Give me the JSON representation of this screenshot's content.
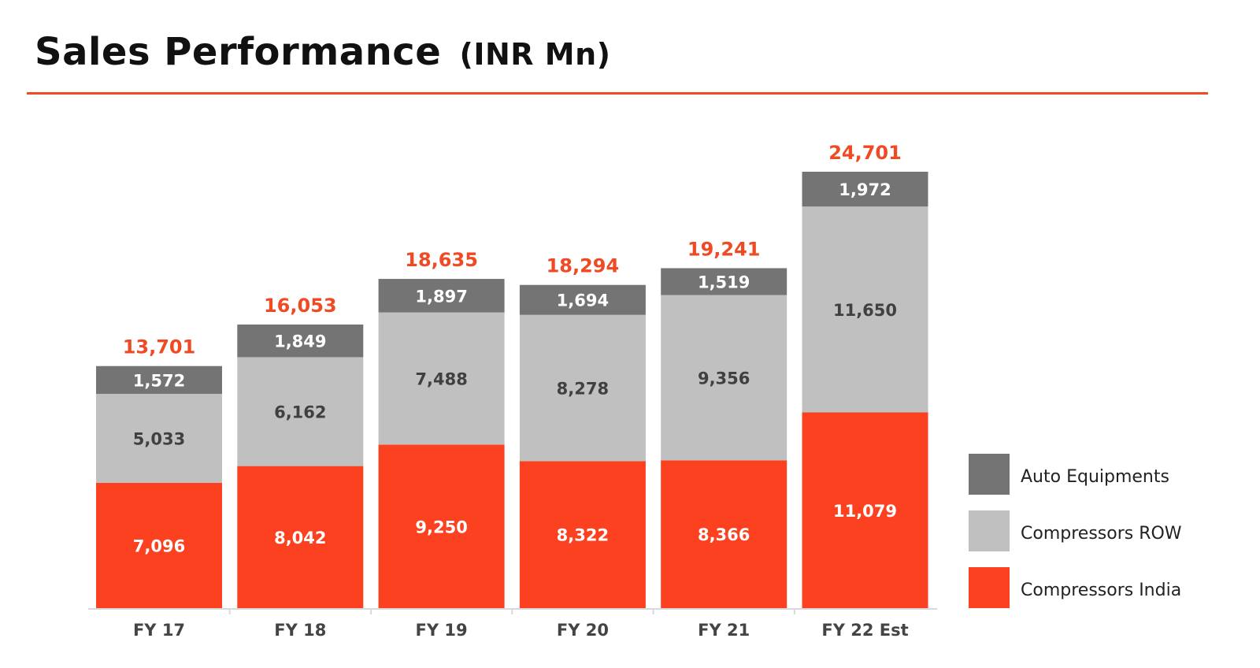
{
  "title": {
    "main": "Sales Performance",
    "sub": "(INR Mn)"
  },
  "colors": {
    "accent": "#f04a24",
    "india": "#fc4120",
    "row": "#c0c0c0",
    "auto": "#747474",
    "total_label": "#f04a24"
  },
  "chart_data": {
    "type": "bar",
    "stacked": true,
    "categories": [
      "FY 17",
      "FY 18",
      "FY 19",
      "FY 20",
      "FY 21",
      "FY 22 Est"
    ],
    "series": [
      {
        "name": "Compressors India",
        "values": [
          7096,
          8042,
          9250,
          8322,
          8366,
          11079
        ],
        "labels": [
          "7,096",
          "8,042",
          "9,250",
          "8,322",
          "8,366",
          "11,079"
        ]
      },
      {
        "name": "Compressors ROW",
        "values": [
          5033,
          6162,
          7488,
          8278,
          9356,
          11650
        ],
        "labels": [
          "5,033",
          "6,162",
          "7,488",
          "8,278",
          "9,356",
          "11,650"
        ]
      },
      {
        "name": "Auto Equipments",
        "values": [
          1572,
          1849,
          1897,
          1694,
          1519,
          1972
        ],
        "labels": [
          "1,572",
          "1,849",
          "1,897",
          "1,694",
          "1,519",
          "1,972"
        ]
      }
    ],
    "totals": [
      13701,
      16053,
      18635,
      18294,
      19241,
      24701
    ],
    "total_labels": [
      "13,701",
      "16,053",
      "18,635",
      "18,294",
      "19,241",
      "24,701"
    ],
    "ylim": [
      0,
      24701
    ],
    "grid": false,
    "legend_position": "bottom-right"
  },
  "legend": [
    {
      "label": "Auto Equipments",
      "color": "#747474"
    },
    {
      "label": "Compressors ROW",
      "color": "#c0c0c0"
    },
    {
      "label": "Compressors India",
      "color": "#fc4120"
    }
  ]
}
